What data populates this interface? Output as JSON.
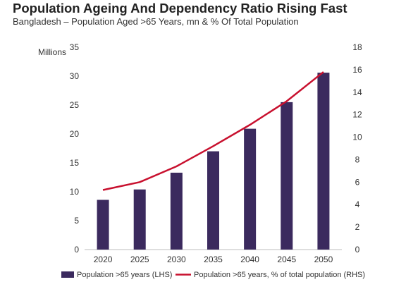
{
  "chart_data": {
    "type": "bar",
    "title": "Population Ageing And Dependency Ratio Rising Fast",
    "subtitle": "Bangladesh – Population Aged >65 Years, mn & % Of Total Population",
    "ylabel_left": "Millions",
    "categories": [
      "2020",
      "2025",
      "2030",
      "2035",
      "2040",
      "2045",
      "2050"
    ],
    "series": [
      {
        "name": "Population >65 years (LHS)",
        "type": "bar",
        "axis": "left",
        "color": "#3b2a5e",
        "values": [
          8.6,
          10.4,
          13.3,
          17.0,
          20.9,
          25.5,
          30.6
        ]
      },
      {
        "name": "Population >65 years, % of total population (RHS)",
        "type": "line",
        "axis": "right",
        "color": "#c8102e",
        "values": [
          5.3,
          6.0,
          7.4,
          9.2,
          11.1,
          13.2,
          15.8
        ]
      }
    ],
    "ylim_left": [
      0,
      35
    ],
    "yticks_left": [
      "0",
      "5",
      "10",
      "15",
      "20",
      "25",
      "30",
      "35"
    ],
    "ylim_right": [
      0,
      18
    ],
    "yticks_right": [
      "0",
      "2",
      "4",
      "6",
      "8",
      "10",
      "12",
      "14",
      "16",
      "18"
    ],
    "grid": false,
    "legend_position": "bottom"
  }
}
